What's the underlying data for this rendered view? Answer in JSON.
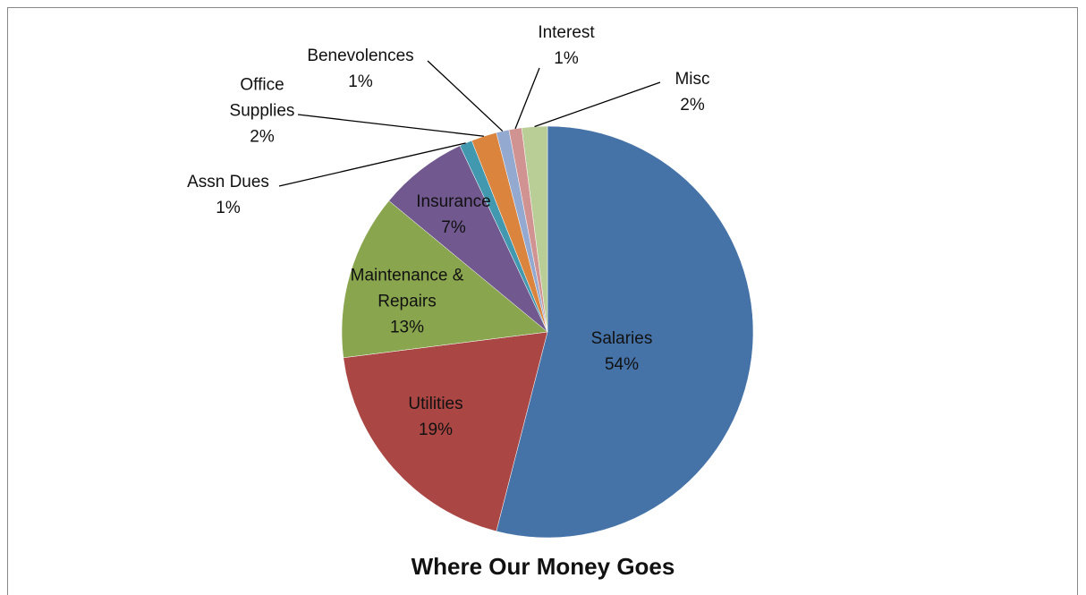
{
  "chart_data": {
    "type": "pie",
    "title": "Where Our Money Goes",
    "categories": [
      "Salaries",
      "Utilities",
      "Maintenance & Repairs",
      "Insurance",
      "Assn Dues",
      "Office Supplies",
      "Benevolences",
      "Interest",
      "Misc"
    ],
    "values": [
      54,
      19,
      13,
      7,
      1,
      2,
      1,
      1,
      2
    ],
    "value_labels": [
      "54%",
      "19%",
      "13%",
      "7%",
      "1%",
      "2%",
      "1%",
      "1%",
      "2%"
    ],
    "colors": [
      "#4572a7",
      "#aa4643",
      "#89a54e",
      "#71588f",
      "#4198af",
      "#db843d",
      "#93a9cf",
      "#d19392",
      "#b9cd96"
    ]
  }
}
